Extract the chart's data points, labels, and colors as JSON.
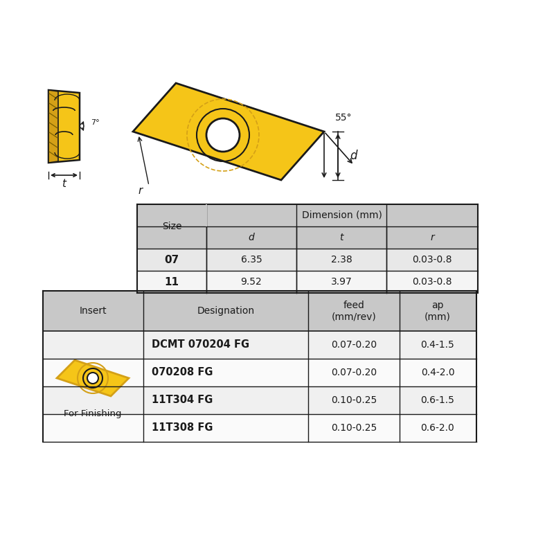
{
  "bg_color": "#ffffff",
  "yellow": "#F5C518",
  "yellow_dark": "#D4A017",
  "yellow_mid": "#E8B800",
  "line_color": "#1a1a1a",
  "table1": {
    "header_bg": "#C8C8C8",
    "row_bg1": "#E8E8E8",
    "row_bg2": "#F5F5F5",
    "header1": "Size",
    "header2": "Dimension (mm)",
    "subheaders": [
      "d",
      "t",
      "r"
    ],
    "rows": [
      [
        "07",
        "6.35",
        "2.38",
        "0.03-0.8"
      ],
      [
        "11",
        "9.52",
        "3.97",
        "0.03-0.8"
      ]
    ]
  },
  "table2": {
    "header_bg": "#C8C8C8",
    "row_bg1": "#F0F0F0",
    "row_bg2": "#FAFAFA",
    "headers": [
      "Insert",
      "Designation",
      "feed\n(mm/rev)",
      "ap\n(mm)"
    ],
    "rows": [
      [
        "DCMT 070204 FG",
        "0.07-0.20",
        "0.4-1.5"
      ],
      [
        "070208 FG",
        "0.07-0.20",
        "0.4-2.0"
      ],
      [
        "11T304 FG",
        "0.10-0.25",
        "0.6-1.5"
      ],
      [
        "11T308 FG",
        "0.10-0.25",
        "0.6-2.0"
      ]
    ],
    "image_label": "For Finishing"
  },
  "angle_label": "55°",
  "d_label": "d",
  "r_label": "r",
  "t_label": "t",
  "angle7_label": "7°"
}
